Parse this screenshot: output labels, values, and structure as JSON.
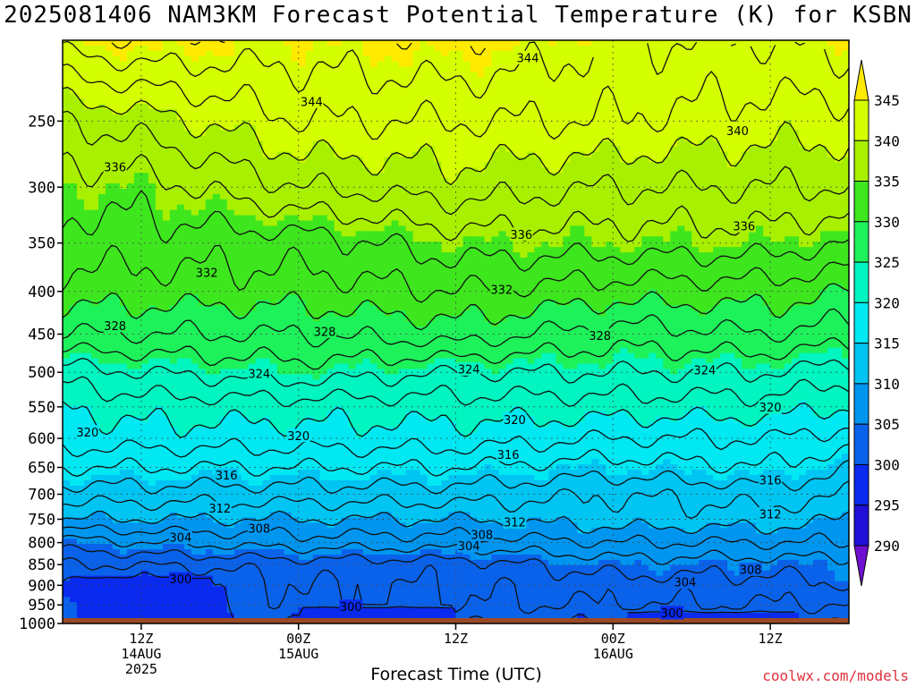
{
  "title": "2025081406 NAM3KM Forecast Potential Temperature (K) for KSBN",
  "xlabel": "Forecast Time (UTC)",
  "credit": "coolwx.com/models",
  "colors": {
    "ground": "#9c4a26",
    "contour": "#111111",
    "grid": "#444444",
    "credit": "#e0303a"
  },
  "chart_data": {
    "type": "contour",
    "title": "2025081406 NAM3KM Forecast Potential Temperature (K) for KSBN",
    "xlabel": "Forecast Time (UTC)",
    "ylabel": "",
    "y_axis": {
      "scale": "log-pressure",
      "inverted": true,
      "range_hpa": [
        200,
        1000
      ]
    },
    "x_axis": {
      "range_hours_from_init": [
        0,
        60
      ]
    },
    "y_ticks": [
      250,
      300,
      350,
      400,
      450,
      500,
      550,
      600,
      650,
      700,
      750,
      800,
      850,
      900,
      950,
      1000
    ],
    "x_ticks": [
      {
        "hour": 6,
        "lines": [
          "12Z",
          "14AUG",
          "2025"
        ]
      },
      {
        "hour": 18,
        "lines": [
          "00Z",
          "15AUG"
        ]
      },
      {
        "hour": 30,
        "lines": [
          "12Z"
        ]
      },
      {
        "hour": 42,
        "lines": [
          "00Z",
          "16AUG"
        ]
      },
      {
        "hour": 54,
        "lines": [
          "12Z"
        ]
      }
    ],
    "grid": "dotted",
    "ground_level_hpa": 985,
    "colorbar": {
      "ticks": [
        345,
        340,
        335,
        330,
        325,
        320,
        315,
        310,
        305,
        300,
        295,
        290
      ],
      "bands": [
        {
          "min": 345,
          "max": 999,
          "color": "#ffea00"
        },
        {
          "min": 340,
          "max": 345,
          "color": "#d4ff00"
        },
        {
          "min": 335,
          "max": 340,
          "color": "#a8f000"
        },
        {
          "min": 330,
          "max": 335,
          "color": "#3ee61e"
        },
        {
          "min": 325,
          "max": 330,
          "color": "#1ef25a"
        },
        {
          "min": 320,
          "max": 325,
          "color": "#00f5c0"
        },
        {
          "min": 315,
          "max": 320,
          "color": "#00e8f2"
        },
        {
          "min": 310,
          "max": 315,
          "color": "#00c4f2"
        },
        {
          "min": 305,
          "max": 310,
          "color": "#0096f0"
        },
        {
          "min": 300,
          "max": 305,
          "color": "#0a62ea"
        },
        {
          "min": 295,
          "max": 300,
          "color": "#0a2af0"
        },
        {
          "min": 290,
          "max": 295,
          "color": "#2010d8"
        },
        {
          "min": 0,
          "max": 290,
          "color": "#6f10d0"
        }
      ]
    },
    "contour_profiles": [
      {
        "name": "theta-profile-start",
        "hour": 0,
        "points": [
          [
            200,
            345
          ],
          [
            250,
            338
          ],
          [
            300,
            335
          ],
          [
            350,
            333
          ],
          [
            400,
            331
          ],
          [
            450,
            328
          ],
          [
            500,
            323
          ],
          [
            550,
            320
          ],
          [
            600,
            319
          ],
          [
            650,
            316
          ],
          [
            700,
            313
          ],
          [
            750,
            310
          ],
          [
            800,
            305
          ],
          [
            850,
            302
          ],
          [
            900,
            300
          ],
          [
            950,
            300
          ],
          [
            1000,
            300
          ]
        ]
      },
      {
        "name": "theta-profile-day1-12z",
        "hour": 6,
        "points": [
          [
            200,
            346
          ],
          [
            250,
            339
          ],
          [
            300,
            335
          ],
          [
            350,
            333
          ],
          [
            400,
            331
          ],
          [
            450,
            328
          ],
          [
            500,
            324
          ],
          [
            550,
            321
          ],
          [
            600,
            319
          ],
          [
            650,
            316
          ],
          [
            700,
            313
          ],
          [
            750,
            310
          ],
          [
            800,
            306
          ],
          [
            850,
            302
          ],
          [
            900,
            299
          ],
          [
            950,
            299
          ],
          [
            1000,
            299
          ]
        ]
      },
      {
        "name": "theta-profile-day2-00z",
        "hour": 18,
        "points": [
          [
            200,
            345
          ],
          [
            250,
            342
          ],
          [
            300,
            338
          ],
          [
            350,
            333
          ],
          [
            400,
            331
          ],
          [
            450,
            328
          ],
          [
            500,
            325
          ],
          [
            550,
            321
          ],
          [
            600,
            319
          ],
          [
            650,
            316
          ],
          [
            700,
            313
          ],
          [
            750,
            310
          ],
          [
            800,
            307
          ],
          [
            850,
            303
          ],
          [
            900,
            302
          ],
          [
            950,
            302
          ],
          [
            1000,
            300
          ]
        ]
      },
      {
        "name": "theta-profile-day2-12z",
        "hour": 30,
        "points": [
          [
            200,
            346
          ],
          [
            250,
            342
          ],
          [
            300,
            339
          ],
          [
            350,
            335
          ],
          [
            400,
            332
          ],
          [
            450,
            329
          ],
          [
            500,
            324
          ],
          [
            550,
            321
          ],
          [
            600,
            319
          ],
          [
            650,
            316
          ],
          [
            700,
            313
          ],
          [
            750,
            310
          ],
          [
            800,
            307
          ],
          [
            850,
            303
          ],
          [
            900,
            302
          ],
          [
            950,
            302
          ],
          [
            1000,
            300
          ]
        ]
      },
      {
        "name": "theta-profile-day3-00z",
        "hour": 42,
        "points": [
          [
            200,
            344
          ],
          [
            250,
            342
          ],
          [
            300,
            338
          ],
          [
            350,
            335
          ],
          [
            400,
            331
          ],
          [
            450,
            327
          ],
          [
            500,
            324
          ],
          [
            550,
            321
          ],
          [
            600,
            318
          ],
          [
            650,
            315
          ],
          [
            700,
            312
          ],
          [
            750,
            311
          ],
          [
            800,
            308
          ],
          [
            850,
            305
          ],
          [
            900,
            303
          ],
          [
            950,
            302
          ],
          [
            1000,
            300
          ]
        ]
      },
      {
        "name": "theta-profile-day3-12z",
        "hour": 54,
        "points": [
          [
            200,
            344
          ],
          [
            250,
            341
          ],
          [
            300,
            338
          ],
          [
            350,
            335
          ],
          [
            400,
            331
          ],
          [
            450,
            328
          ],
          [
            500,
            324
          ],
          [
            550,
            321
          ],
          [
            600,
            318
          ],
          [
            650,
            316
          ],
          [
            700,
            313
          ],
          [
            750,
            311
          ],
          [
            800,
            308
          ],
          [
            850,
            305
          ],
          [
            900,
            303
          ],
          [
            950,
            302
          ],
          [
            1000,
            300
          ]
        ]
      },
      {
        "name": "theta-profile-end",
        "hour": 60,
        "points": [
          [
            200,
            345
          ],
          [
            250,
            341
          ],
          [
            300,
            338
          ],
          [
            350,
            334
          ],
          [
            400,
            330
          ],
          [
            450,
            327
          ],
          [
            500,
            323
          ],
          [
            550,
            320
          ],
          [
            600,
            317
          ],
          [
            650,
            314
          ],
          [
            700,
            312
          ],
          [
            750,
            310
          ],
          [
            800,
            308
          ],
          [
            850,
            305
          ],
          [
            900,
            304
          ],
          [
            950,
            302
          ],
          [
            1000,
            300
          ]
        ]
      }
    ],
    "contour_labels": [
      {
        "text": "344",
        "hour": 35.5,
        "p": 210
      },
      {
        "text": "344",
        "hour": 19.0,
        "p": 237
      },
      {
        "text": "340",
        "hour": 51.5,
        "p": 257
      },
      {
        "text": "336",
        "hour": 4.0,
        "p": 284
      },
      {
        "text": "336",
        "hour": 52.0,
        "p": 334
      },
      {
        "text": "336",
        "hour": 35.0,
        "p": 342
      },
      {
        "text": "332",
        "hour": 11.0,
        "p": 380
      },
      {
        "text": "332",
        "hour": 33.5,
        "p": 398
      },
      {
        "text": "328",
        "hour": 4.0,
        "p": 440
      },
      {
        "text": "328",
        "hour": 20.0,
        "p": 447
      },
      {
        "text": "328",
        "hour": 41.0,
        "p": 452
      },
      {
        "text": "324",
        "hour": 15.0,
        "p": 502
      },
      {
        "text": "324",
        "hour": 31.0,
        "p": 496
      },
      {
        "text": "324",
        "hour": 49.0,
        "p": 497
      },
      {
        "text": "320",
        "hour": 54.0,
        "p": 551
      },
      {
        "text": "320",
        "hour": 34.5,
        "p": 570
      },
      {
        "text": "320",
        "hour": 1.9,
        "p": 590
      },
      {
        "text": "320",
        "hour": 18.0,
        "p": 596
      },
      {
        "text": "316",
        "hour": 34.0,
        "p": 628
      },
      {
        "text": "316",
        "hour": 12.5,
        "p": 665
      },
      {
        "text": "316",
        "hour": 54.0,
        "p": 674
      },
      {
        "text": "312",
        "hour": 12.0,
        "p": 728
      },
      {
        "text": "312",
        "hour": 34.5,
        "p": 757
      },
      {
        "text": "312",
        "hour": 54.0,
        "p": 740
      },
      {
        "text": "308",
        "hour": 15.0,
        "p": 770
      },
      {
        "text": "308",
        "hour": 32.0,
        "p": 783
      },
      {
        "text": "304",
        "hour": 9.0,
        "p": 789
      },
      {
        "text": "304",
        "hour": 31.0,
        "p": 808
      },
      {
        "text": "308",
        "hour": 52.5,
        "p": 862
      },
      {
        "text": "304",
        "hour": 47.5,
        "p": 893
      },
      {
        "text": "300",
        "hour": 9.0,
        "p": 885
      },
      {
        "text": "300",
        "hour": 22.0,
        "p": 955
      },
      {
        "text": "300",
        "hour": 46.5,
        "p": 972
      }
    ],
    "cold_pools": [
      {
        "name": "cold-pool-west",
        "h0": 1.0,
        "h1": 11.3,
        "p0": 880,
        "p1": 990
      },
      {
        "name": "cold-pool-middle",
        "h0": 18.2,
        "h1": 29.8,
        "p0": 955,
        "p1": 990
      },
      {
        "name": "cold-pool-east",
        "h0": 43.0,
        "h1": 56.0,
        "p0": 970,
        "p1": 990
      }
    ]
  }
}
